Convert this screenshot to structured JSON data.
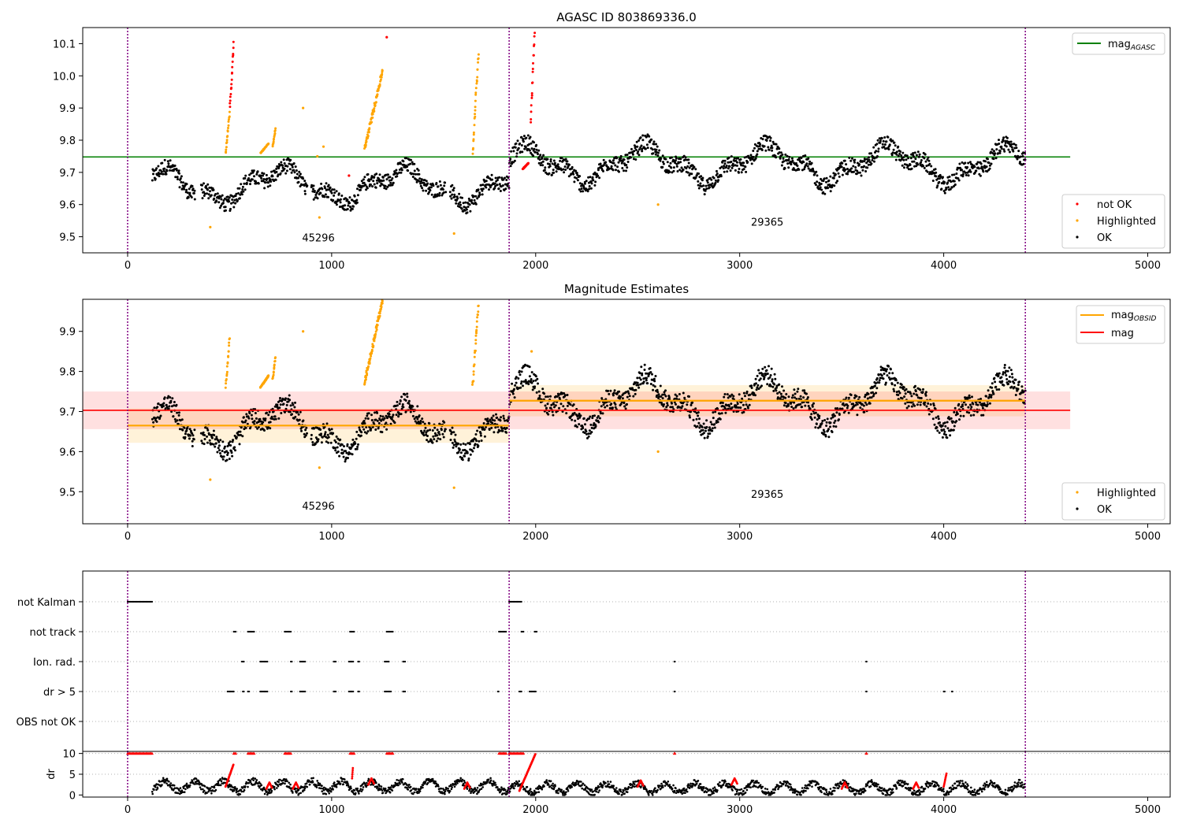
{
  "chart_data": [
    {
      "type": "scatter",
      "title": "AGASC ID 803869336.0",
      "xlim": [
        -220,
        5110
      ],
      "ylim": [
        9.45,
        10.15
      ],
      "x_ticks": [
        0,
        1000,
        2000,
        3000,
        4000,
        5000
      ],
      "y_ticks": [
        9.5,
        9.6,
        9.7,
        9.8,
        9.9,
        10.0,
        10.1
      ],
      "obs_boundaries": [
        0,
        1870,
        4400
      ],
      "obs_labels": [
        {
          "x": 935,
          "y": 9.485,
          "text": "45296"
        },
        {
          "x": 3135,
          "y": 9.535,
          "text": "29365"
        }
      ],
      "lines": [
        {
          "name": "mag_AGASC",
          "label": "mag",
          "label_sub": "AGASC",
          "y": 9.748,
          "x": [
            -220,
            4620
          ],
          "color": "#008000"
        }
      ],
      "series": [
        {
          "name": "not OK",
          "color": "#ff0000",
          "segments": [
            [
              500,
              520,
              9.9,
              10.11
            ],
            [
              1935,
              1965,
              9.71,
              9.73
            ],
            [
              1975,
              1995,
              9.86,
              10.15
            ]
          ],
          "points": [
            [
              1085,
              9.69
            ],
            [
              1270,
              10.12
            ]
          ]
        },
        {
          "name": "Highlighted",
          "color": "#ffa500",
          "segments": [
            [
              480,
              500,
              9.76,
              9.89
            ],
            [
              650,
              690,
              9.76,
              9.79
            ],
            [
              710,
              725,
              9.78,
              9.84
            ],
            [
              1160,
              1250,
              9.77,
              10.02
            ],
            [
              1690,
              1720,
              9.76,
              10.09
            ]
          ],
          "points": [
            [
              405,
              9.53
            ],
            [
              860,
              9.9
            ],
            [
              940,
              9.56
            ],
            [
              1600,
              9.51
            ],
            [
              2600,
              9.6
            ],
            [
              960,
              9.78
            ],
            [
              930,
              9.75
            ]
          ]
        },
        {
          "name": "OK",
          "color": "#000000",
          "segments": [
            [
              120,
              1870,
              9.58,
              9.74
            ],
            [
              1870,
              4400,
              9.64,
              9.81
            ]
          ],
          "points": []
        }
      ],
      "legend": {
        "position": "lower-right",
        "entries": [
          "not OK",
          "Highlighted",
          "OK"
        ]
      }
    },
    {
      "type": "scatter",
      "title": "Magnitude Estimates",
      "xlim": [
        -220,
        5110
      ],
      "ylim": [
        9.42,
        9.98
      ],
      "x_ticks": [
        0,
        1000,
        2000,
        3000,
        4000,
        5000
      ],
      "y_ticks": [
        9.5,
        9.6,
        9.7,
        9.8,
        9.9
      ],
      "obs_boundaries": [
        0,
        1870,
        4400
      ],
      "obs_labels": [
        {
          "x": 935,
          "y": 9.455,
          "text": "45296"
        },
        {
          "x": 3135,
          "y": 9.485,
          "text": "29365"
        }
      ],
      "lines": [
        {
          "name": "mag_OBSID",
          "label": "mag",
          "label_sub": "OBSID",
          "color": "#ffa500",
          "steps": [
            {
              "x": [
                0,
                1870
              ],
              "y": 9.665,
              "band": [
                9.622,
                9.708
              ]
            },
            {
              "x": [
                1870,
                4400
              ],
              "y": 9.727,
              "band": [
                9.688,
                9.766
              ]
            }
          ]
        },
        {
          "name": "mag",
          "label": "mag",
          "label_sub": "",
          "color": "#ff0000",
          "y": 9.703,
          "x": [
            -220,
            4620
          ],
          "band": [
            9.656,
            9.75
          ]
        }
      ],
      "series": [
        {
          "name": "Highlighted",
          "color": "#ffa500",
          "segments": [
            [
              480,
              500,
              9.76,
              9.89
            ],
            [
              650,
              690,
              9.76,
              9.79
            ],
            [
              710,
              725,
              9.78,
              9.84
            ],
            [
              1160,
              1250,
              9.77,
              9.98
            ],
            [
              1690,
              1720,
              9.76,
              9.98
            ]
          ],
          "points": [
            [
              405,
              9.53
            ],
            [
              860,
              9.9
            ],
            [
              940,
              9.56
            ],
            [
              1600,
              9.51
            ],
            [
              2600,
              9.6
            ],
            [
              1980,
              9.85
            ]
          ]
        },
        {
          "name": "OK",
          "color": "#000000",
          "segments": [
            [
              120,
              1870,
              9.58,
              9.74
            ],
            [
              1870,
              4400,
              9.64,
              9.81
            ]
          ],
          "points": []
        }
      ],
      "legend_lines": {
        "position": "upper-right",
        "entries": [
          "mag_OBSID",
          "mag"
        ]
      },
      "legend": {
        "position": "lower-right",
        "entries": [
          "Highlighted",
          "OK"
        ]
      }
    },
    {
      "type": "scatter",
      "title": "",
      "xlim": [
        -220,
        5110
      ],
      "categories": [
        "not Kalman",
        "not track",
        "Ion. rad.",
        "dr > 5",
        "OBS not OK"
      ],
      "flag_points": {
        "not Kalman": [
          [
            0,
            120
          ],
          [
            1870,
            1930
          ]
        ],
        "not track": [
          [
            520,
            530
          ],
          [
            590,
            620
          ],
          [
            770,
            800
          ],
          [
            1090,
            1110
          ],
          [
            1270,
            1300
          ],
          [
            1820,
            1855
          ],
          [
            1930,
            1940
          ],
          [
            1995,
            2005
          ]
        ],
        "Ion. rad.": [
          [
            560,
            570
          ],
          [
            650,
            685
          ],
          [
            800,
            805
          ],
          [
            845,
            870
          ],
          [
            1010,
            1020
          ],
          [
            1085,
            1105
          ],
          [
            1130,
            1135
          ],
          [
            1260,
            1280
          ],
          [
            1350,
            1360
          ],
          [
            2680,
            2682
          ],
          [
            3620,
            3622
          ]
        ],
        "dr > 5": [
          [
            490,
            520
          ],
          [
            565,
            570
          ],
          [
            590,
            595
          ],
          [
            650,
            685
          ],
          [
            800,
            805
          ],
          [
            845,
            870
          ],
          [
            1010,
            1020
          ],
          [
            1085,
            1105
          ],
          [
            1130,
            1135
          ],
          [
            1260,
            1290
          ],
          [
            1350,
            1360
          ],
          [
            1815,
            1818
          ],
          [
            1920,
            1930
          ],
          [
            1970,
            2000
          ],
          [
            2680,
            2682
          ],
          [
            3620,
            3622
          ],
          [
            4000,
            4005
          ],
          [
            4040,
            4043
          ]
        ],
        "OBS not OK": []
      },
      "dr": {
        "ylabel": "dr",
        "ylim": [
          -0.5,
          10.5
        ],
        "y_ticks": [
          0,
          5,
          10
        ],
        "segments": [
          [
            120,
            1870,
            0.5,
            4.0
          ],
          [
            1870,
            4400,
            0.2,
            3.5
          ]
        ],
        "red_segments": [
          [
            480,
            520,
            2.0,
            7.5
          ],
          [
            1920,
            2000,
            1.0,
            10.0
          ],
          [
            4000,
            4015,
            2.0,
            5.5
          ],
          [
            1100,
            1105,
            4.0,
            7.0
          ]
        ],
        "capped_at_10": [
          [
            0,
            120
          ],
          [
            520,
            530
          ],
          [
            590,
            620
          ],
          [
            770,
            800
          ],
          [
            1090,
            1110
          ],
          [
            1270,
            1300
          ],
          [
            1820,
            1855
          ],
          [
            1870,
            1940
          ],
          [
            2680,
            2682
          ],
          [
            3620,
            3622
          ]
        ]
      }
    }
  ],
  "legend_labels": {
    "not_ok": "not OK",
    "highlighted": "Highlighted",
    "ok": "OK",
    "mag_agasc_main": "mag",
    "mag_agasc_sub": "AGASC",
    "mag_obsid_main": "mag",
    "mag_obsid_sub": "OBSID",
    "mag": "mag"
  }
}
